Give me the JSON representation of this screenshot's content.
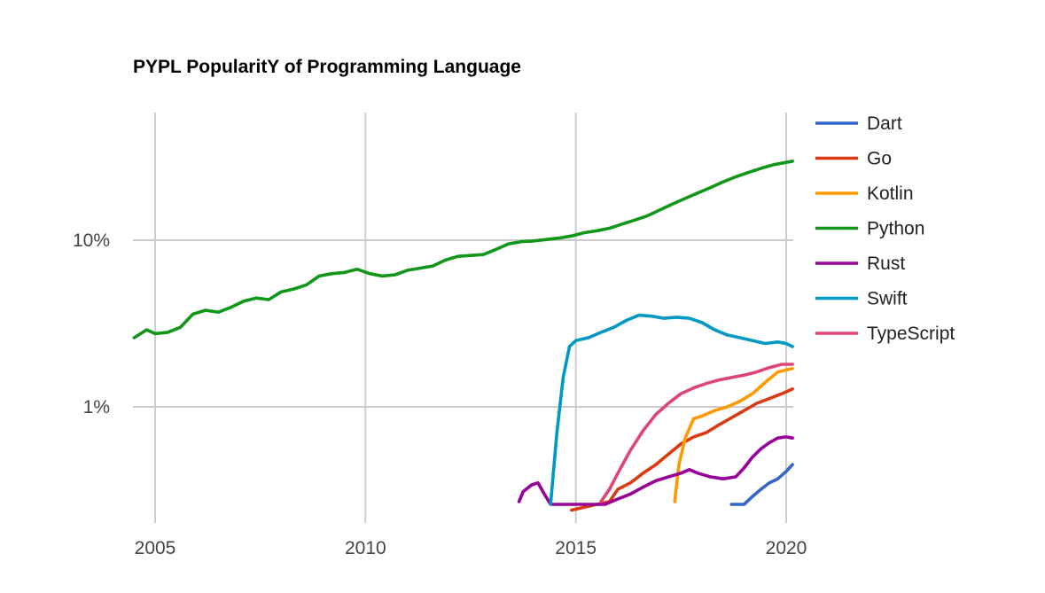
{
  "chart_data": {
    "type": "line",
    "title": "PYPL PopularitY of Programming Language",
    "xlabel": "",
    "ylabel": "",
    "y_scale": "log",
    "x_tick_labels": [
      "2005",
      "2010",
      "2015",
      "2020"
    ],
    "x_ticks": [
      2005,
      2010,
      2015,
      2020
    ],
    "y_tick_labels": [
      "10%",
      "1%"
    ],
    "y_ticks": [
      10,
      1
    ],
    "xlim": [
      2004.5,
      2020.2
    ],
    "ylim": [
      0.27,
      40
    ],
    "grid": true,
    "legend_position": "right",
    "series": [
      {
        "name": "Dart",
        "color": "#3366cc",
        "points": [
          [
            2018.7,
            0.26
          ],
          [
            2019.0,
            0.26
          ],
          [
            2019.2,
            0.29
          ],
          [
            2019.4,
            0.32
          ],
          [
            2019.6,
            0.35
          ],
          [
            2019.8,
            0.37
          ],
          [
            2020.0,
            0.41
          ],
          [
            2020.15,
            0.45
          ]
        ]
      },
      {
        "name": "Go",
        "color": "#dc3912",
        "points": [
          [
            2014.9,
            0.24
          ],
          [
            2015.2,
            0.25
          ],
          [
            2015.5,
            0.26
          ],
          [
            2015.8,
            0.27
          ],
          [
            2016.0,
            0.32
          ],
          [
            2016.3,
            0.35
          ],
          [
            2016.6,
            0.4
          ],
          [
            2016.9,
            0.45
          ],
          [
            2017.2,
            0.52
          ],
          [
            2017.5,
            0.6
          ],
          [
            2017.8,
            0.66
          ],
          [
            2018.1,
            0.7
          ],
          [
            2018.4,
            0.78
          ],
          [
            2018.7,
            0.86
          ],
          [
            2019.0,
            0.95
          ],
          [
            2019.3,
            1.05
          ],
          [
            2019.6,
            1.12
          ],
          [
            2019.9,
            1.2
          ],
          [
            2020.15,
            1.28
          ]
        ]
      },
      {
        "name": "Kotlin",
        "color": "#ff9900",
        "points": [
          [
            2017.35,
            0.27
          ],
          [
            2017.45,
            0.45
          ],
          [
            2017.6,
            0.65
          ],
          [
            2017.8,
            0.85
          ],
          [
            2018.0,
            0.88
          ],
          [
            2018.3,
            0.95
          ],
          [
            2018.6,
            1.0
          ],
          [
            2018.9,
            1.08
          ],
          [
            2019.2,
            1.2
          ],
          [
            2019.5,
            1.4
          ],
          [
            2019.8,
            1.62
          ],
          [
            2020.15,
            1.7
          ]
        ]
      },
      {
        "name": "Python",
        "color": "#109618",
        "points": [
          [
            2004.5,
            2.6
          ],
          [
            2004.8,
            2.9
          ],
          [
            2005.0,
            2.75
          ],
          [
            2005.3,
            2.8
          ],
          [
            2005.6,
            3.0
          ],
          [
            2005.9,
            3.6
          ],
          [
            2006.2,
            3.8
          ],
          [
            2006.5,
            3.7
          ],
          [
            2006.8,
            3.95
          ],
          [
            2007.1,
            4.3
          ],
          [
            2007.4,
            4.5
          ],
          [
            2007.7,
            4.4
          ],
          [
            2008.0,
            4.9
          ],
          [
            2008.3,
            5.1
          ],
          [
            2008.6,
            5.4
          ],
          [
            2008.9,
            6.1
          ],
          [
            2009.2,
            6.3
          ],
          [
            2009.5,
            6.4
          ],
          [
            2009.8,
            6.7
          ],
          [
            2010.1,
            6.3
          ],
          [
            2010.4,
            6.1
          ],
          [
            2010.7,
            6.2
          ],
          [
            2011.0,
            6.6
          ],
          [
            2011.3,
            6.8
          ],
          [
            2011.6,
            7.0
          ],
          [
            2011.9,
            7.6
          ],
          [
            2012.2,
            8.0
          ],
          [
            2012.5,
            8.1
          ],
          [
            2012.8,
            8.2
          ],
          [
            2013.1,
            8.8
          ],
          [
            2013.4,
            9.5
          ],
          [
            2013.7,
            9.8
          ],
          [
            2014.0,
            9.9
          ],
          [
            2014.3,
            10.1
          ],
          [
            2014.6,
            10.3
          ],
          [
            2014.9,
            10.6
          ],
          [
            2015.2,
            11.1
          ],
          [
            2015.5,
            11.4
          ],
          [
            2015.8,
            11.8
          ],
          [
            2016.1,
            12.5
          ],
          [
            2016.4,
            13.2
          ],
          [
            2016.7,
            14.0
          ],
          [
            2017.0,
            15.2
          ],
          [
            2017.3,
            16.5
          ],
          [
            2017.6,
            17.8
          ],
          [
            2017.9,
            19.2
          ],
          [
            2018.2,
            20.7
          ],
          [
            2018.5,
            22.4
          ],
          [
            2018.8,
            24.0
          ],
          [
            2019.1,
            25.5
          ],
          [
            2019.4,
            27.0
          ],
          [
            2019.7,
            28.4
          ],
          [
            2020.0,
            29.3
          ],
          [
            2020.15,
            29.8
          ]
        ]
      },
      {
        "name": "Rust",
        "color": "#990099",
        "points": [
          [
            2013.65,
            0.27
          ],
          [
            2013.75,
            0.31
          ],
          [
            2013.95,
            0.34
          ],
          [
            2014.1,
            0.35
          ],
          [
            2014.25,
            0.3
          ],
          [
            2014.4,
            0.26
          ],
          [
            2015.7,
            0.26
          ],
          [
            2016.0,
            0.28
          ],
          [
            2016.3,
            0.3
          ],
          [
            2016.6,
            0.33
          ],
          [
            2016.9,
            0.36
          ],
          [
            2017.2,
            0.38
          ],
          [
            2017.5,
            0.4
          ],
          [
            2017.7,
            0.42
          ],
          [
            2017.9,
            0.4
          ],
          [
            2018.2,
            0.38
          ],
          [
            2018.5,
            0.37
          ],
          [
            2018.8,
            0.38
          ],
          [
            2019.0,
            0.43
          ],
          [
            2019.2,
            0.5
          ],
          [
            2019.4,
            0.56
          ],
          [
            2019.6,
            0.61
          ],
          [
            2019.8,
            0.65
          ],
          [
            2020.0,
            0.66
          ],
          [
            2020.15,
            0.65
          ]
        ]
      },
      {
        "name": "Swift",
        "color": "#0099c6",
        "points": [
          [
            2014.4,
            0.26
          ],
          [
            2014.55,
            0.7
          ],
          [
            2014.7,
            1.5
          ],
          [
            2014.85,
            2.3
          ],
          [
            2015.0,
            2.5
          ],
          [
            2015.3,
            2.6
          ],
          [
            2015.6,
            2.8
          ],
          [
            2015.9,
            3.0
          ],
          [
            2016.2,
            3.3
          ],
          [
            2016.5,
            3.55
          ],
          [
            2016.8,
            3.5
          ],
          [
            2017.1,
            3.4
          ],
          [
            2017.4,
            3.45
          ],
          [
            2017.7,
            3.4
          ],
          [
            2018.0,
            3.2
          ],
          [
            2018.3,
            2.9
          ],
          [
            2018.6,
            2.7
          ],
          [
            2018.9,
            2.6
          ],
          [
            2019.2,
            2.5
          ],
          [
            2019.5,
            2.4
          ],
          [
            2019.8,
            2.45
          ],
          [
            2020.0,
            2.4
          ],
          [
            2020.15,
            2.3
          ]
        ]
      },
      {
        "name": "TypeScript",
        "color": "#dd4477",
        "points": [
          [
            2015.6,
            0.27
          ],
          [
            2015.8,
            0.32
          ],
          [
            2016.0,
            0.4
          ],
          [
            2016.3,
            0.55
          ],
          [
            2016.6,
            0.72
          ],
          [
            2016.9,
            0.9
          ],
          [
            2017.2,
            1.05
          ],
          [
            2017.5,
            1.2
          ],
          [
            2017.8,
            1.3
          ],
          [
            2018.1,
            1.38
          ],
          [
            2018.4,
            1.45
          ],
          [
            2018.7,
            1.5
          ],
          [
            2019.0,
            1.55
          ],
          [
            2019.3,
            1.62
          ],
          [
            2019.6,
            1.72
          ],
          [
            2019.9,
            1.8
          ],
          [
            2020.15,
            1.8
          ]
        ]
      }
    ]
  }
}
